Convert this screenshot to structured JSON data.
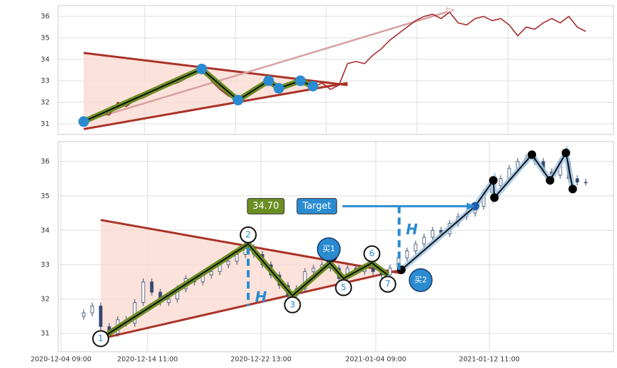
{
  "chart_data": [
    {
      "type": "line",
      "x": [
        20,
        27.5,
        35,
        42.5,
        50,
        57.5,
        65,
        72.5,
        80,
        87.5,
        95,
        102.5,
        110,
        117.5,
        125,
        132.5,
        140,
        147.5,
        155,
        162.5,
        170,
        177.5,
        185,
        192.5,
        200,
        207.5,
        215,
        222.5,
        230,
        237.5,
        245,
        252.5,
        260,
        267.5,
        275,
        282.5,
        290,
        297.5,
        305,
        312.5,
        320,
        327.5,
        335,
        342.5,
        350,
        357.5,
        365,
        372.5,
        380,
        387.5,
        395,
        402.5,
        410,
        417.5,
        425,
        432.5,
        440,
        447.5,
        455,
        462.5
      ],
      "values": [
        31.1,
        31.4,
        31.5,
        31.4,
        32.0,
        31.8,
        32.1,
        32.2,
        32.4,
        32.6,
        32.8,
        32.9,
        33.1,
        33.4,
        33.5,
        33.0,
        32.6,
        32.3,
        32.1,
        32.4,
        32.7,
        32.9,
        33.0,
        32.6,
        32.8,
        33.0,
        32.9,
        32.7,
        32.9,
        32.6,
        32.8,
        33.8,
        33.9,
        33.8,
        34.2,
        34.5,
        34.9,
        35.2,
        35.5,
        35.8,
        36.0,
        36.1,
        35.9,
        36.2,
        35.7,
        35.6,
        35.9,
        36.0,
        35.8,
        35.9,
        35.6,
        35.1,
        35.5,
        35.4,
        35.7,
        35.9,
        35.7,
        36.0,
        35.5,
        35.3
      ],
      "color": "#a52a2a",
      "xlim": [
        -2.5,
        486.9
      ],
      "ylim": [
        30.5,
        36.5
      ],
      "xticks": [
        {
          "value": 73.75,
          "label": null
        },
        {
          "value": 153.75,
          "label": null
        },
        {
          "value": 233.75,
          "label": null
        },
        {
          "value": 313.75,
          "label": null
        },
        {
          "value": 393.75,
          "label": null
        }
      ],
      "yticks": [
        31,
        32,
        33,
        34,
        35,
        36
      ],
      "grid": true,
      "triangle": {
        "upper": {
          "x": [
            20,
            252.5
          ],
          "y": [
            34.3,
            32.8
          ]
        },
        "lower": {
          "x": [
            20,
            252.5
          ],
          "y": [
            30.75,
            32.9
          ]
        },
        "color": "#a93226",
        "fill": "#fadbd2"
      },
      "zigzag": {
        "x": [
          20,
          124,
          156,
          183,
          192,
          211,
          222
        ],
        "y": [
          31.1,
          33.55,
          32.1,
          33.0,
          32.65,
          33.0,
          32.75
        ],
        "color": "#6b8e23",
        "marker_color": "#2a8bd0"
      },
      "arrow": {
        "x": [
          20,
          346
        ],
        "y": [
          31.1,
          36.3
        ],
        "color": "#d9a0a0"
      }
    },
    {
      "type": "candlestick",
      "x": [
        20,
        27.5,
        35,
        42.5,
        50,
        57.5,
        65,
        72.5,
        80,
        87.5,
        95,
        102.5,
        110,
        117.5,
        125,
        132.5,
        140,
        147.5,
        155,
        162.5,
        170,
        177.5,
        185,
        192.5,
        200,
        207.5,
        215,
        222.5,
        230,
        237.5,
        245,
        252.5,
        260,
        267.5,
        275,
        282.5,
        290,
        297.5,
        305,
        312.5,
        320,
        327.5,
        335,
        342.5,
        350,
        357.5,
        365,
        372.5,
        380,
        387.5,
        395,
        402.5,
        410,
        417.5,
        425,
        432.5,
        440,
        447.5,
        455,
        462.5
      ],
      "open": [
        31.5,
        31.6,
        31.8,
        31.2,
        31.0,
        31.4,
        31.3,
        31.9,
        32.5,
        32.2,
        31.9,
        32.0,
        32.3,
        32.6,
        32.5,
        32.7,
        32.8,
        33.0,
        33.1,
        33.3,
        33.5,
        33.3,
        33.0,
        32.7,
        32.4,
        32.1,
        32.3,
        32.8,
        32.9,
        33.0,
        32.9,
        32.6,
        32.9,
        32.8,
        32.9,
        32.8,
        32.7,
        32.9,
        33.2,
        33.4,
        33.6,
        33.8,
        34.0,
        33.9,
        34.2,
        34.4,
        34.5,
        34.7,
        35.1,
        35.3,
        35.5,
        35.8,
        36.0,
        36.1,
        36.0,
        35.7,
        35.6,
        36.0,
        35.5,
        35.4
      ],
      "high": [
        31.7,
        31.9,
        31.9,
        31.3,
        31.5,
        31.5,
        32.0,
        32.6,
        32.6,
        32.3,
        32.1,
        32.4,
        32.7,
        32.7,
        32.8,
        32.9,
        33.1,
        33.2,
        33.4,
        33.6,
        33.6,
        33.4,
        33.1,
        32.8,
        32.5,
        32.4,
        32.9,
        33.0,
        33.1,
        33.1,
        33.0,
        33.0,
        33.0,
        33.0,
        33.0,
        32.9,
        33.0,
        33.3,
        33.5,
        33.7,
        33.9,
        34.1,
        34.1,
        34.3,
        34.5,
        34.6,
        34.8,
        35.2,
        35.4,
        35.6,
        35.9,
        36.1,
        36.2,
        36.2,
        36.1,
        35.8,
        36.1,
        36.1,
        35.6,
        35.5
      ],
      "low": [
        31.4,
        31.5,
        31.1,
        30.9,
        30.9,
        31.2,
        31.2,
        31.8,
        32.1,
        31.8,
        31.8,
        31.9,
        32.2,
        32.4,
        32.4,
        32.6,
        32.7,
        32.9,
        33.0,
        33.2,
        33.2,
        32.9,
        32.6,
        32.3,
        32.0,
        32.0,
        32.2,
        32.7,
        32.8,
        32.8,
        32.5,
        32.5,
        32.7,
        32.7,
        32.7,
        32.6,
        32.6,
        32.8,
        33.1,
        33.3,
        33.5,
        33.7,
        33.8,
        33.8,
        34.1,
        34.3,
        34.4,
        34.6,
        35.0,
        35.2,
        35.4,
        35.7,
        35.9,
        35.9,
        35.6,
        35.5,
        35.5,
        35.4,
        35.3,
        35.3
      ],
      "close": [
        31.6,
        31.8,
        31.2,
        31.0,
        31.4,
        31.3,
        31.9,
        32.5,
        32.2,
        31.9,
        32.0,
        32.3,
        32.6,
        32.5,
        32.7,
        32.8,
        33.0,
        33.1,
        33.3,
        33.5,
        33.3,
        33.0,
        32.7,
        32.4,
        32.1,
        32.3,
        32.8,
        32.9,
        33.0,
        32.9,
        32.6,
        32.9,
        32.8,
        32.9,
        32.8,
        32.7,
        32.9,
        33.2,
        33.4,
        33.6,
        33.8,
        34.0,
        33.9,
        34.2,
        34.4,
        34.5,
        34.7,
        35.1,
        35.3,
        35.5,
        35.8,
        36.0,
        36.1,
        36.0,
        35.7,
        35.6,
        36.0,
        35.5,
        35.4,
        35.4
      ],
      "color": "#34486e",
      "xlim": [
        -2.5,
        486.9
      ],
      "ylim": [
        30.47,
        36.58
      ],
      "xticks": [
        {
          "value": 0,
          "label": "2020-12-04 09:00"
        },
        {
          "value": 76.25,
          "label": "2020-12-14 11:00"
        },
        {
          "value": 176.25,
          "label": "2020-12-22 13:00"
        },
        {
          "value": 277.5,
          "label": "2021-01-04 09:00"
        },
        {
          "value": 377.5,
          "label": "2021-01-12 11:00"
        }
      ],
      "yticks": [
        31,
        32,
        33,
        34,
        35,
        36
      ],
      "grid": true,
      "triangle": {
        "upper": {
          "x": [
            35,
            300
          ],
          "y": [
            34.3,
            32.75
          ]
        },
        "lower": {
          "x": [
            35,
            300
          ],
          "y": [
            30.85,
            32.85
          ]
        },
        "color": "#a93226",
        "fill": "#fadbd2"
      },
      "zigzag": {
        "x": [
          35,
          165,
          204,
          237,
          249,
          274,
          288
        ],
        "y": [
          30.85,
          33.6,
          32.1,
          33.05,
          32.6,
          33.05,
          32.7
        ],
        "labels": [
          "1",
          "2",
          "3",
          "4",
          "5",
          "6",
          "7"
        ],
        "color": "#6b8e23"
      },
      "wave": {
        "x": [
          300,
          365,
          381,
          382,
          415,
          431,
          445,
          451
        ],
        "y": [
          32.85,
          34.7,
          35.45,
          34.95,
          36.2,
          35.45,
          36.25,
          35.2
        ],
        "color": "#1f5fa8"
      },
      "target": {
        "value": 34.7,
        "label": "34.70",
        "text": "Target",
        "x": [
          248,
          365
        ],
        "color": "#2a8bd0",
        "box_color": "#6b8e23"
      },
      "annotations": [
        {
          "text": "买1",
          "x": 236,
          "y": 33.45
        },
        {
          "text": "买2",
          "x": 317,
          "y": 32.55
        }
      ],
      "measures": [
        {
          "text": "H",
          "x": 165,
          "y": [
            33.5,
            31.8
          ]
        },
        {
          "text": "H",
          "x": 298,
          "y": [
            34.7,
            32.8
          ]
        }
      ]
    }
  ]
}
